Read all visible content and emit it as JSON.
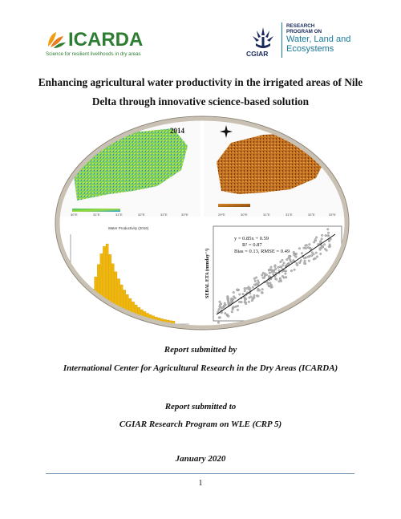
{
  "logos": {
    "icarda_name": "ICARDA",
    "icarda_tagline": "Science for resilient livelihoods in dry areas",
    "cgiar_name": "CGIAR",
    "program_line1": "RESEARCH",
    "program_line2": "PROGRAM ON",
    "program_line3": "Water, Land and",
    "program_line4": "Ecosystems"
  },
  "title": "Enhancing agricultural water productivity in the irrigated areas of Nile Delta through innovative science-based solution",
  "cover_figure": {
    "map1_year": "2014",
    "histogram_title": "Water Productivity (2016)",
    "scatter_eq1": "y = 0.85x + 0.59",
    "scatter_eq2": "R² = 0.87",
    "scatter_eq3": "Bias = 0.13, RMSE = 0.49",
    "scatter_ylabel": "SEBAL ETA (mmday⁻¹)"
  },
  "report": {
    "submitted_by_label": "Report submitted by",
    "submitted_by_org": "International Center for Agricultural Research in the Dry Areas (ICARDA)",
    "submitted_to_label": "Report submitted to",
    "submitted_to_org": "CGIAR Research Program on WLE (CRP 5)",
    "date": "January 2020"
  },
  "page_number": "1",
  "colors": {
    "icarda_green": "#2e7d32",
    "icarda_orange": "#f39c12",
    "cgiar_navy": "#1b2a5c",
    "wle_teal": "#1a7a9a",
    "histogram_bar": "#f2b705",
    "footer_rule": "#6f8fb8"
  }
}
